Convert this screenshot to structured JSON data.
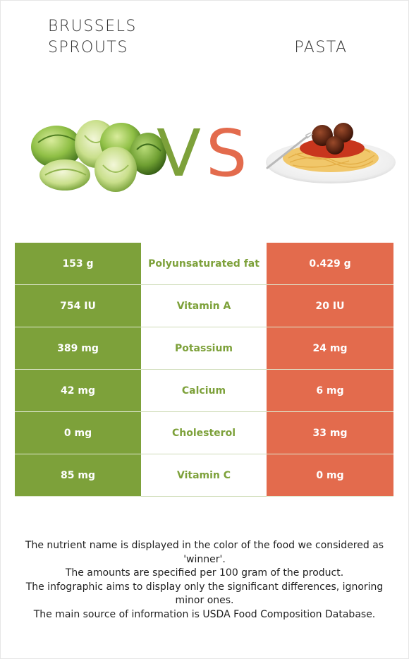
{
  "header": {
    "left_title": "BRUSSELS SPROUTS",
    "right_title": "PASTA",
    "vs_v": "V",
    "vs_s": "S"
  },
  "colors": {
    "left_food": "#7da13a",
    "right_food": "#e36b4d"
  },
  "rows": [
    {
      "left": "153 g",
      "nutrient": "Polyunsaturated fat",
      "right": "0.429 g",
      "winner": "left"
    },
    {
      "left": "754 IU",
      "nutrient": "Vitamin A",
      "right": "20 IU",
      "winner": "left"
    },
    {
      "left": "389 mg",
      "nutrient": "Potassium",
      "right": "24 mg",
      "winner": "left"
    },
    {
      "left": "42 mg",
      "nutrient": "Calcium",
      "right": "6 mg",
      "winner": "left"
    },
    {
      "left": "0 mg",
      "nutrient": "Cholesterol",
      "right": "33 mg",
      "winner": "left"
    },
    {
      "left": "85 mg",
      "nutrient": "Vitamin C",
      "right": "0 mg",
      "winner": "left"
    }
  ],
  "notes": [
    "The nutrient name is displayed in the color of the food we considered as 'winner'.",
    "The amounts are specified per 100 gram of the product.",
    "The infographic aims to display only the significant differences, ignoring minor ones.",
    "The main source of information is USDA Food Composition Database."
  ]
}
